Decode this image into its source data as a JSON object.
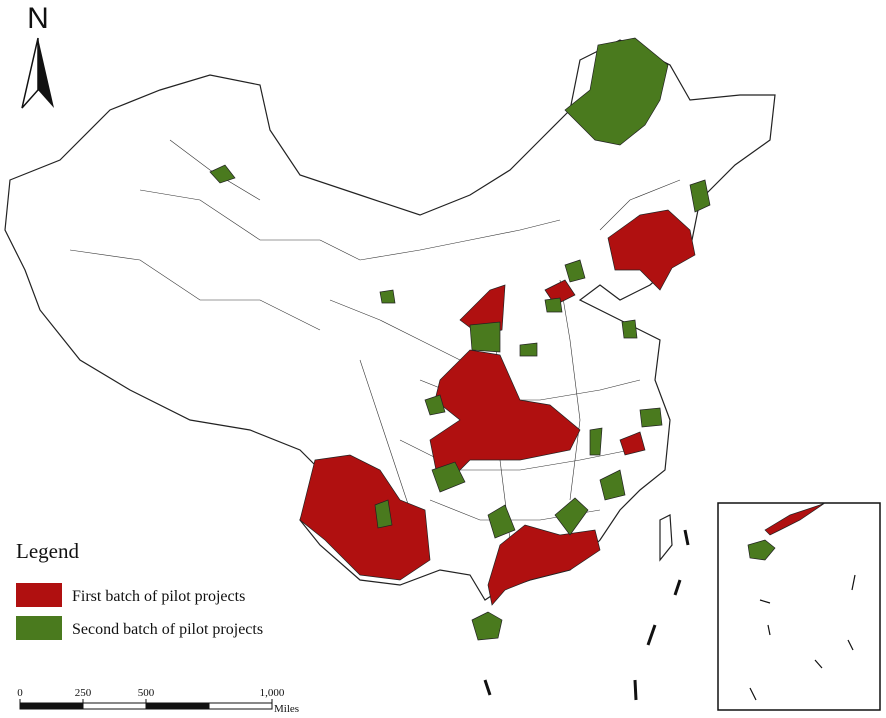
{
  "north_arrow": {
    "label": "N"
  },
  "legend": {
    "title": "Legend",
    "items": [
      {
        "label": "First batch of pilot projects",
        "color": "#b01010"
      },
      {
        "label": "Second batch of pilot projects",
        "color": "#4a7a1e"
      }
    ]
  },
  "scale_bar": {
    "ticks": [
      0,
      250,
      500,
      {
        "value": 1000,
        "label": "1,000"
      }
    ],
    "unit": "Miles"
  }
}
